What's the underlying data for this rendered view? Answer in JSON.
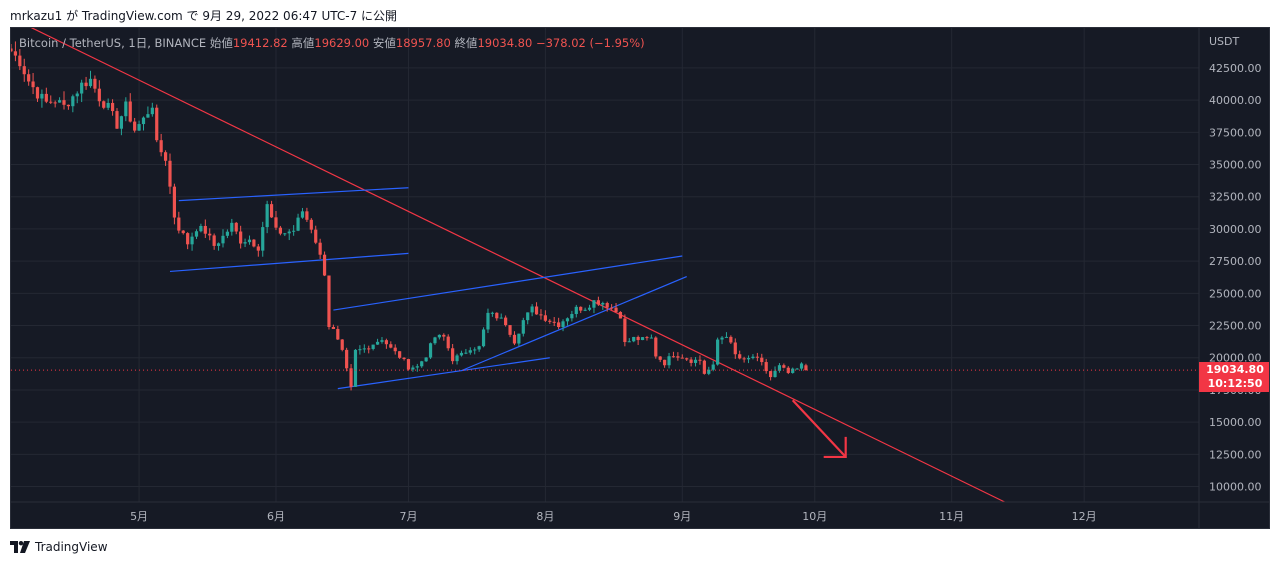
{
  "caption": "mrkazu1 が TradingView.com で 9月 29, 2022 06:47 UTC-7 に公開",
  "legend": {
    "symbol": "Bitcoin / TetherUS, 1日, BINANCE",
    "open_label": "始値",
    "open": "19412.82",
    "high_label": "高値",
    "high": "19629.00",
    "low_label": "安値",
    "low": "18957.80",
    "close_label": "終値",
    "close": "19034.80",
    "change": "−378.02 (−1.95%)"
  },
  "currency": "USDT",
  "last_price": "19034.80",
  "countdown": "10:12:50",
  "footer": "TradingView",
  "colors": {
    "background": "#161a25",
    "up": "#26a69a",
    "down": "#ef5350",
    "trendline_red": "#f23645",
    "trendline_blue": "#2962ff"
  },
  "chart_data": {
    "type": "candlestick",
    "series_type": "ohlc_daily",
    "y_ticks": [
      10000,
      12500,
      15000,
      17500,
      20000,
      22500,
      25000,
      27500,
      30000,
      32500,
      35000,
      37500,
      40000,
      42500
    ],
    "y_tick_labels": [
      "10000.00",
      "12500.00",
      "15000.00",
      "17500.00",
      "20000.00",
      "22500.00",
      "25000.00",
      "27500.00",
      "30000.00",
      "32500.00",
      "35000.00",
      "37500.00",
      "40000.00",
      "42500.00"
    ],
    "ylim": [
      8800,
      45600
    ],
    "x_ticks": [
      {
        "label": "5月",
        "date": "2022-05-01"
      },
      {
        "label": "6月",
        "date": "2022-06-01"
      },
      {
        "label": "7月",
        "date": "2022-07-01"
      },
      {
        "label": "8月",
        "date": "2022-08-01"
      },
      {
        "label": "9月",
        "date": "2022-09-01"
      },
      {
        "label": "10月",
        "date": "2022-10-01"
      },
      {
        "label": "11月",
        "date": "2022-11-01"
      },
      {
        "label": "12月",
        "date": "2022-12-01"
      }
    ],
    "xlim": [
      "2022-04-02",
      "2022-12-27"
    ],
    "grid": true,
    "keypoints": [
      [
        "2022-04-02",
        43800
      ],
      [
        "2022-04-04",
        43000
      ],
      [
        "2022-04-06",
        41500
      ],
      [
        "2022-04-08",
        40500
      ],
      [
        "2022-04-10",
        39800
      ],
      [
        "2022-04-12",
        40000
      ],
      [
        "2022-04-14",
        39500
      ],
      [
        "2022-04-16",
        40300
      ],
      [
        "2022-04-18",
        41200
      ],
      [
        "2022-04-20",
        41600
      ],
      [
        "2022-04-22",
        40200
      ],
      [
        "2022-04-24",
        39400
      ],
      [
        "2022-04-26",
        38100
      ],
      [
        "2022-04-28",
        39500
      ],
      [
        "2022-04-30",
        37700
      ],
      [
        "2022-05-02",
        38500
      ],
      [
        "2022-05-04",
        39700
      ],
      [
        "2022-05-05",
        36500
      ],
      [
        "2022-05-07",
        35500
      ],
      [
        "2022-05-09",
        31000
      ],
      [
        "2022-05-10",
        30100
      ],
      [
        "2022-05-12",
        28900
      ],
      [
        "2022-05-14",
        30100
      ],
      [
        "2022-05-16",
        29800
      ],
      [
        "2022-05-18",
        28700
      ],
      [
        "2022-05-20",
        29400
      ],
      [
        "2022-05-22",
        30300
      ],
      [
        "2022-05-24",
        29100
      ],
      [
        "2022-05-26",
        29200
      ],
      [
        "2022-05-28",
        28600
      ],
      [
        "2022-05-30",
        31800
      ],
      [
        "2022-06-01",
        29800
      ],
      [
        "2022-06-03",
        29700
      ],
      [
        "2022-06-05",
        29900
      ],
      [
        "2022-06-07",
        31400
      ],
      [
        "2022-06-09",
        30100
      ],
      [
        "2022-06-10",
        29100
      ],
      [
        "2022-06-12",
        26600
      ],
      [
        "2022-06-13",
        22500
      ],
      [
        "2022-06-14",
        22100
      ],
      [
        "2022-06-16",
        20400
      ],
      [
        "2022-06-18",
        17600
      ],
      [
        "2022-06-19",
        20500
      ],
      [
        "2022-06-21",
        20700
      ],
      [
        "2022-06-23",
        21100
      ],
      [
        "2022-06-25",
        21500
      ],
      [
        "2022-06-27",
        20700
      ],
      [
        "2022-06-29",
        20100
      ],
      [
        "2022-07-01",
        19300
      ],
      [
        "2022-07-03",
        19300
      ],
      [
        "2022-07-05",
        20200
      ],
      [
        "2022-07-07",
        21600
      ],
      [
        "2022-07-09",
        21600
      ],
      [
        "2022-07-11",
        19900
      ],
      [
        "2022-07-13",
        20200
      ],
      [
        "2022-07-15",
        20800
      ],
      [
        "2022-07-17",
        20800
      ],
      [
        "2022-07-19",
        23400
      ],
      [
        "2022-07-21",
        23200
      ],
      [
        "2022-07-23",
        22700
      ],
      [
        "2022-07-25",
        21300
      ],
      [
        "2022-07-27",
        22900
      ],
      [
        "2022-07-29",
        23800
      ],
      [
        "2022-07-31",
        23300
      ],
      [
        "2022-08-02",
        22900
      ],
      [
        "2022-08-04",
        22600
      ],
      [
        "2022-08-06",
        23200
      ],
      [
        "2022-08-08",
        23800
      ],
      [
        "2022-08-10",
        23900
      ],
      [
        "2022-08-12",
        24400
      ],
      [
        "2022-08-14",
        24300
      ],
      [
        "2022-08-16",
        23900
      ],
      [
        "2022-08-18",
        23300
      ],
      [
        "2022-08-19",
        21100
      ],
      [
        "2022-08-21",
        21500
      ],
      [
        "2022-08-23",
        21400
      ],
      [
        "2022-08-25",
        21500
      ],
      [
        "2022-08-26",
        20200
      ],
      [
        "2022-08-28",
        19600
      ],
      [
        "2022-08-30",
        20300
      ],
      [
        "2022-09-01",
        20100
      ],
      [
        "2022-09-03",
        19800
      ],
      [
        "2022-09-05",
        19800
      ],
      [
        "2022-09-06",
        18800
      ],
      [
        "2022-09-08",
        19300
      ],
      [
        "2022-09-09",
        21400
      ],
      [
        "2022-09-11",
        21800
      ],
      [
        "2022-09-13",
        20200
      ],
      [
        "2022-09-15",
        19700
      ],
      [
        "2022-09-17",
        20100
      ],
      [
        "2022-09-19",
        19500
      ],
      [
        "2022-09-21",
        18500
      ],
      [
        "2022-09-23",
        19300
      ],
      [
        "2022-09-25",
        18800
      ],
      [
        "2022-09-27",
        19100
      ],
      [
        "2022-09-28",
        19412.82
      ],
      [
        "2022-09-29",
        19034.8
      ]
    ],
    "lines": [
      {
        "color": "#f23645",
        "x1": "2022-03-30",
        "y1": 46900,
        "x2": "2022-11-13",
        "y2": 8800
      },
      {
        "color": "#2962ff",
        "x1": "2022-05-10",
        "y1": 32200,
        "x2": "2022-07-01",
        "y2": 33200
      },
      {
        "color": "#2962ff",
        "x1": "2022-05-08",
        "y1": 26700,
        "x2": "2022-07-01",
        "y2": 28100
      },
      {
        "color": "#2962ff",
        "x1": "2022-06-14",
        "y1": 23700,
        "x2": "2022-09-01",
        "y2": 27900
      },
      {
        "color": "#2962ff",
        "x1": "2022-06-15",
        "y1": 17600,
        "x2": "2022-08-02",
        "y2": 20000
      },
      {
        "color": "#2962ff",
        "x1": "2022-07-13",
        "y1": 19000,
        "x2": "2022-09-02",
        "y2": 26300
      }
    ],
    "arrow": {
      "color": "#f23645",
      "x1": "2022-09-26",
      "y1": 16700,
      "x2": "2022-10-08",
      "y2": 12300
    }
  }
}
